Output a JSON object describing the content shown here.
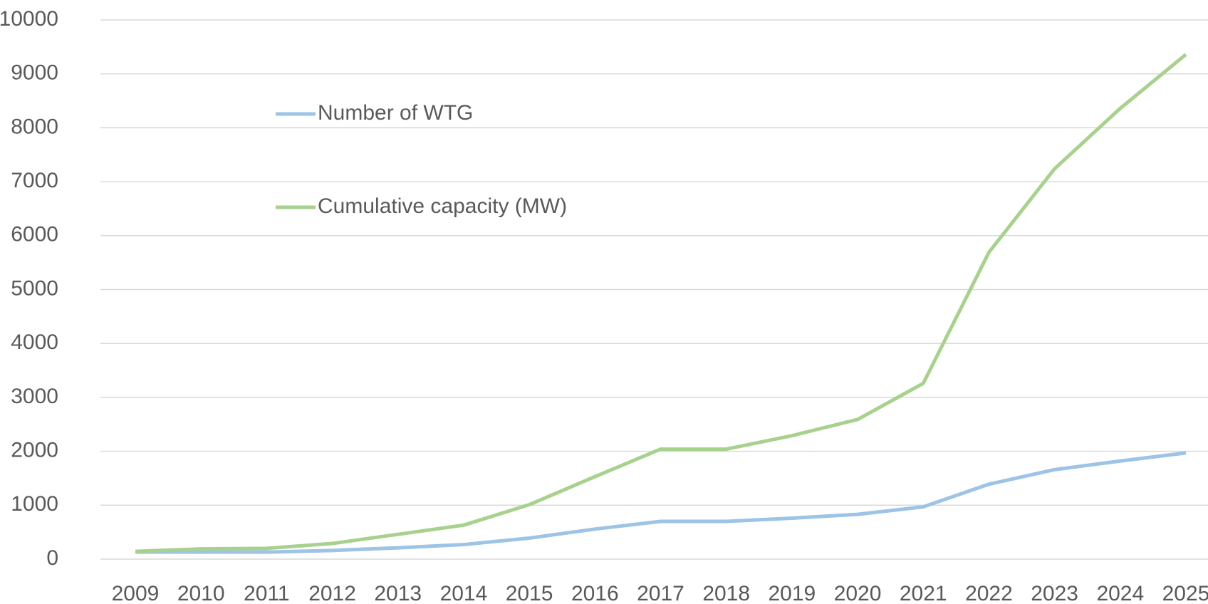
{
  "chart_data": {
    "type": "line",
    "categories": [
      "2009",
      "2010",
      "2011",
      "2012",
      "2013",
      "2014",
      "2015",
      "2016",
      "2017",
      "2018",
      "2019",
      "2020",
      "2021",
      "2022",
      "2023",
      "2024",
      "2025"
    ],
    "series": [
      {
        "name": "Number of WTG",
        "color": "#9dc3e6",
        "values": [
          130,
          130,
          130,
          160,
          210,
          270,
          390,
          557,
          700,
          700,
          760,
          830,
          970,
          1390,
          1660,
          1820,
          1970
        ]
      },
      {
        "name": "Cumulative capacity (MW)",
        "color": "#a9d18e",
        "values": [
          143,
          190,
          200,
          290,
          460,
          630,
          1010,
          1530,
          2040,
          2040,
          2290,
          2590,
          3260,
          5690,
          7240,
          8360,
          9360
        ]
      }
    ],
    "ylim": [
      0,
      10000
    ],
    "yticks": [
      0,
      1000,
      2000,
      3000,
      4000,
      5000,
      6000,
      7000,
      8000,
      9000,
      10000
    ],
    "grid": true
  }
}
